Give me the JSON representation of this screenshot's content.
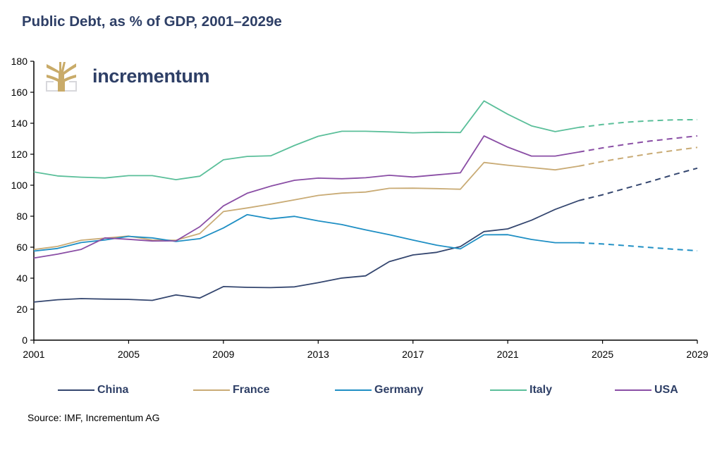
{
  "title": "Public Debt, as % of GDP, 2001–2029e",
  "logo": {
    "text": "incrementum",
    "icon": "tree-icon",
    "icon_color": "#c9ab69"
  },
  "source": "Source: IMF, Incrementum AG",
  "chart_data": {
    "type": "line",
    "title": "Public Debt, as % of GDP, 2001–2029e",
    "xlabel": "",
    "ylabel": "",
    "x": [
      2001,
      2002,
      2003,
      2004,
      2005,
      2006,
      2007,
      2008,
      2009,
      2010,
      2011,
      2012,
      2013,
      2014,
      2015,
      2016,
      2017,
      2018,
      2019,
      2020,
      2021,
      2022,
      2023,
      2024,
      2025,
      2026,
      2027,
      2028,
      2029
    ],
    "xlim": [
      2001,
      2029
    ],
    "ylim": [
      0,
      180
    ],
    "xticks": [
      2001,
      2005,
      2009,
      2013,
      2017,
      2021,
      2025,
      2029
    ],
    "xtick_labels": [
      "2001",
      "2005",
      "2009",
      "2013",
      "2017",
      "2021",
      "2025",
      "2029"
    ],
    "yticks": [
      0,
      20,
      40,
      60,
      80,
      100,
      120,
      140,
      160,
      180
    ],
    "ytick_labels": [
      "0",
      "20",
      "40",
      "60",
      "80",
      "100",
      "120",
      "140",
      "160",
      "180"
    ],
    "grid": false,
    "legend_position": "bottom",
    "forecast_start": 2024,
    "forecast_style": "dashed",
    "series": [
      {
        "name": "China",
        "color": "#34466f",
        "values": [
          24.6,
          26.1,
          26.8,
          26.5,
          26.3,
          25.7,
          29.2,
          27.2,
          34.6,
          34.1,
          33.9,
          34.4,
          37.1,
          40.1,
          41.5,
          50.7,
          55.0,
          56.7,
          60.4,
          70.1,
          71.8,
          77.4,
          84.4,
          90.1,
          93.8,
          98.1,
          102.3,
          106.8,
          111.0
        ]
      },
      {
        "name": "France",
        "color": "#c9ab75",
        "values": [
          58.5,
          60.5,
          64.5,
          65.8,
          67.2,
          64.6,
          64.5,
          68.8,
          83.0,
          85.3,
          87.8,
          90.6,
          93.4,
          94.9,
          95.6,
          98.0,
          98.1,
          97.8,
          97.4,
          114.7,
          112.9,
          111.4,
          109.9,
          112.3,
          115.3,
          117.9,
          120.3,
          122.4,
          124.4
        ]
      },
      {
        "name": "Germany",
        "color": "#1f8fc4",
        "values": [
          57.5,
          59.2,
          63.0,
          64.7,
          67.0,
          66.0,
          63.7,
          65.5,
          72.4,
          81.0,
          78.3,
          79.9,
          77.0,
          74.6,
          71.2,
          68.1,
          64.6,
          61.3,
          58.9,
          68.0,
          68.1,
          65.0,
          62.9,
          62.9,
          62.1,
          61.0,
          59.8,
          58.7,
          57.7
        ]
      },
      {
        "name": "Italy",
        "color": "#5bbf9a",
        "values": [
          108.6,
          106.0,
          105.2,
          104.7,
          106.2,
          106.2,
          103.6,
          105.8,
          116.4,
          118.6,
          119.0,
          125.7,
          131.6,
          134.8,
          134.8,
          134.4,
          133.8,
          134.2,
          134.0,
          154.4,
          145.8,
          138.3,
          134.6,
          137.3,
          139.2,
          140.7,
          141.6,
          142.2,
          142.3
        ]
      },
      {
        "name": "USA",
        "color": "#8a4ea5",
        "values": [
          53.0,
          55.5,
          58.6,
          66.0,
          65.1,
          64.0,
          64.1,
          73.2,
          86.7,
          94.8,
          99.4,
          103.2,
          104.6,
          104.2,
          104.8,
          106.4,
          105.3,
          106.7,
          108.0,
          131.8,
          124.6,
          118.8,
          118.8,
          121.4,
          124.1,
          126.4,
          128.5,
          130.2,
          131.8
        ]
      }
    ]
  }
}
